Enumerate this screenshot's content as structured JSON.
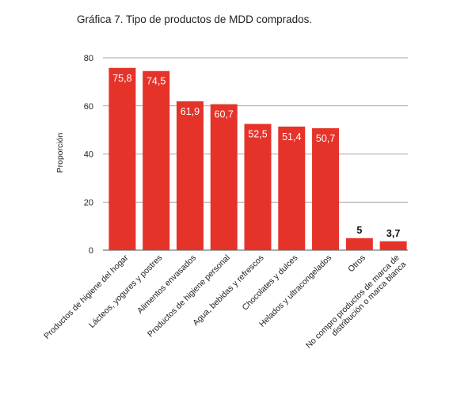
{
  "chart_data": {
    "type": "bar",
    "title": "Gráfica 7. Tipo de productos de MDD comprados.",
    "ylabel": "Proporción",
    "xlabel": "",
    "ylim": [
      0,
      80
    ],
    "yticks": [
      0,
      20,
      40,
      60,
      80
    ],
    "grid": true,
    "bar_color": "#e6332a",
    "categories": [
      [
        "Productos de higiene del hogar"
      ],
      [
        "Lácteos, yogures y postres"
      ],
      [
        "Alimentos envasados"
      ],
      [
        "Productos de higiene personal"
      ],
      [
        "Agua, bebidas y refrescos"
      ],
      [
        "Chocolates y dulces"
      ],
      [
        "Helados y ultracongelados"
      ],
      [
        "Otros"
      ],
      [
        "No compro productos de marca de",
        "distribución o marca blanca"
      ]
    ],
    "values": [
      75.8,
      74.5,
      61.9,
      60.7,
      52.5,
      51.4,
      50.7,
      5,
      3.7
    ],
    "value_labels": [
      "75,8",
      "74,5",
      "61,9",
      "60,7",
      "52,5",
      "51,4",
      "50,7",
      "5",
      "3,7"
    ]
  }
}
